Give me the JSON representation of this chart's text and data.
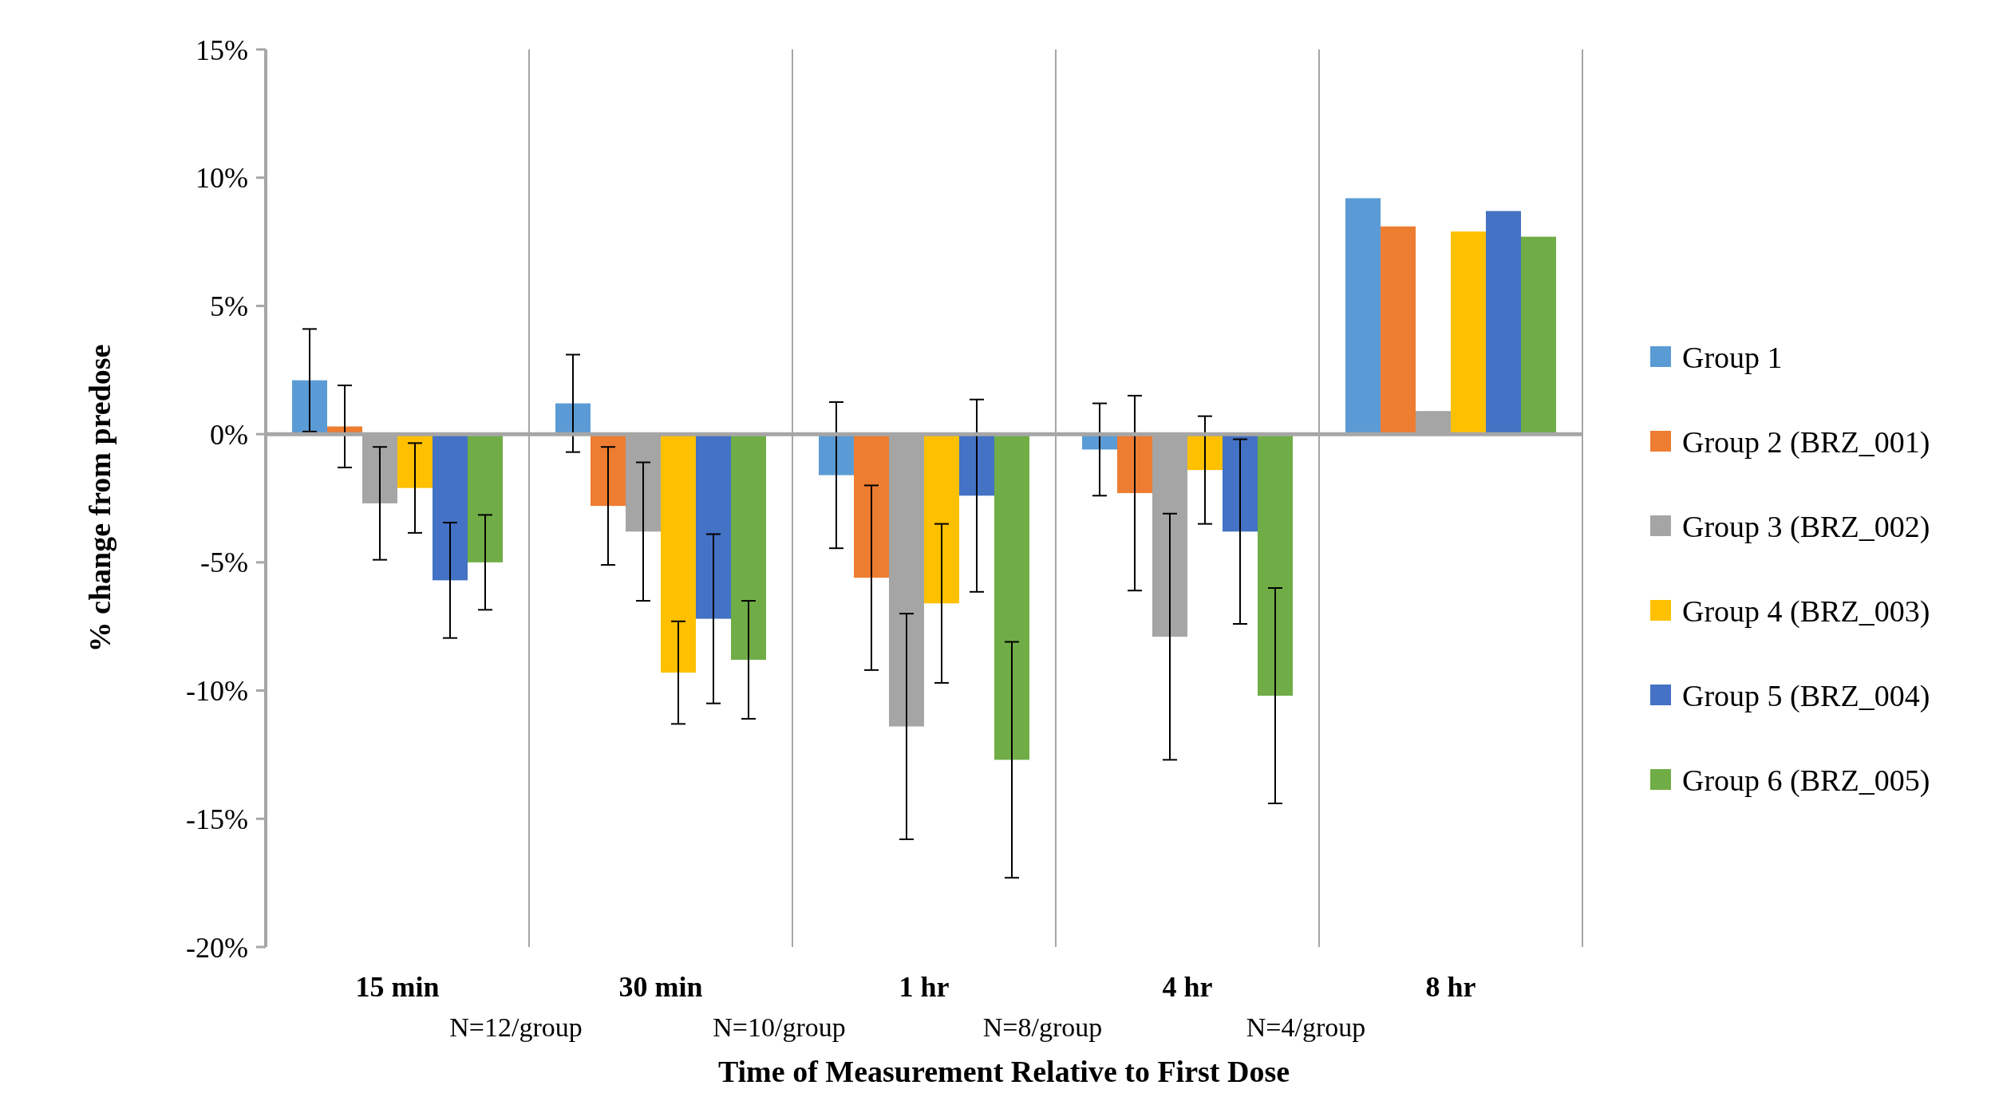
{
  "chart_data": {
    "type": "bar",
    "xlabel": "Time of Measurement Relative to First Dose",
    "ylabel": "% change from predose",
    "categories": [
      "15 min",
      "30 min",
      "1 hr",
      "4 hr",
      "8 hr"
    ],
    "annotations": [
      "N=12/group",
      "N=10/group",
      "N=8/group",
      "N=4/group"
    ],
    "ylim": [
      -20,
      15
    ],
    "yticks": [
      {
        "value": -20,
        "label": "-20%"
      },
      {
        "value": -15,
        "label": "-15%"
      },
      {
        "value": -10,
        "label": "-10%"
      },
      {
        "value": -5,
        "label": "-5%"
      },
      {
        "value": 0,
        "label": "0%"
      },
      {
        "value": 5,
        "label": "5%"
      },
      {
        "value": 10,
        "label": "10%"
      },
      {
        "value": 15,
        "label": "15%"
      }
    ],
    "grid": "x",
    "legend": "right",
    "series": [
      {
        "name": "Group 1",
        "color": "#5b9bd5",
        "values": [
          2.1,
          1.2,
          -1.6,
          -0.6,
          9.2
        ],
        "errors": [
          2.0,
          1.9,
          2.85,
          1.8,
          null
        ]
      },
      {
        "name": "Group 2 (BRZ_001)",
        "color": "#ed7d31",
        "values": [
          0.3,
          -2.8,
          -5.6,
          -2.3,
          8.1
        ],
        "errors": [
          1.6,
          2.3,
          3.6,
          3.8,
          null
        ]
      },
      {
        "name": "Group 3 (BRZ_002)",
        "color": "#a5a5a5",
        "values": [
          -2.7,
          -3.8,
          -11.4,
          -7.9,
          0.9
        ],
        "errors": [
          2.2,
          2.7,
          4.4,
          4.8,
          null
        ]
      },
      {
        "name": "Group 4 (BRZ_003)",
        "color": "#ffc000",
        "values": [
          -2.1,
          -9.3,
          -6.6,
          -1.4,
          7.9
        ],
        "errors": [
          1.75,
          2.0,
          3.1,
          2.1,
          null
        ]
      },
      {
        "name": "Group 5 (BRZ_004)",
        "color": "#4472c4",
        "values": [
          -5.7,
          -7.2,
          -2.4,
          -3.8,
          8.7
        ],
        "errors": [
          2.25,
          3.3,
          3.75,
          3.6,
          null
        ]
      },
      {
        "name": "Group 6 (BRZ_005)",
        "color": "#70ad47",
        "values": [
          -5.0,
          -8.8,
          -12.7,
          -10.2,
          7.7
        ],
        "errors": [
          1.85,
          2.3,
          4.6,
          4.2,
          null
        ]
      }
    ]
  }
}
